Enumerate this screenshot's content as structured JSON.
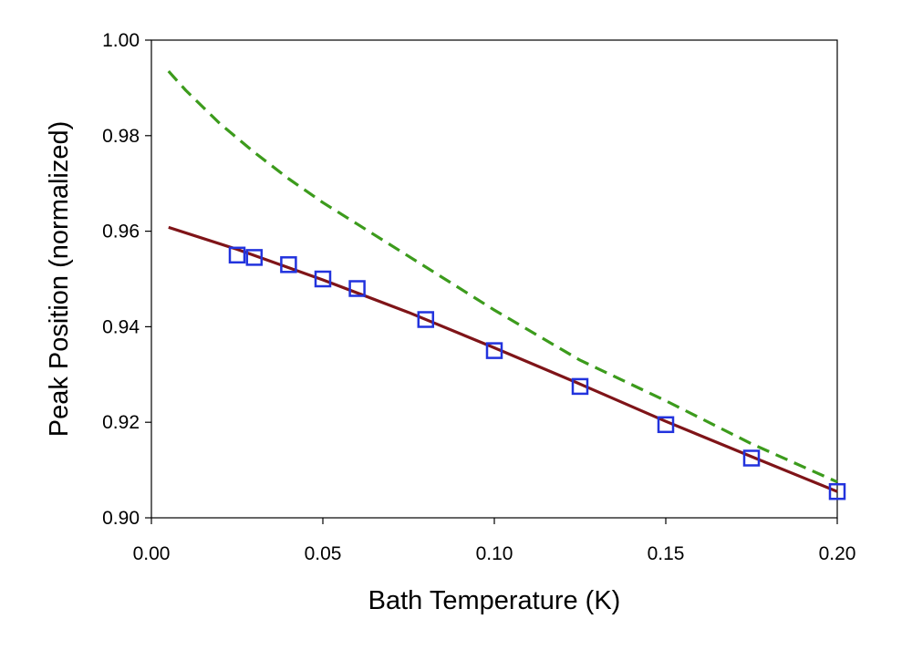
{
  "chart_data": {
    "type": "line",
    "title": "",
    "xlabel": "Bath Temperature  (K)",
    "ylabel": "Peak Position (normalized)",
    "xlim": [
      0.0,
      0.2
    ],
    "ylim": [
      0.9,
      1.0
    ],
    "grid": false,
    "x_ticks": [
      "0.00",
      "0.05",
      "0.10",
      "0.15",
      "0.20"
    ],
    "x_tick_values": [
      0.0,
      0.05,
      0.1,
      0.15,
      0.2
    ],
    "y_ticks": [
      "0.90",
      "0.92",
      "0.94",
      "0.96",
      "0.98",
      "1.00"
    ],
    "y_tick_values": [
      0.9,
      0.92,
      0.94,
      0.96,
      0.98,
      1.0
    ],
    "series": [
      {
        "kind": "line",
        "style": "dashed",
        "color": "#3c9b1c",
        "x": [
          0.005,
          0.01,
          0.02,
          0.03,
          0.04,
          0.05,
          0.06,
          0.08,
          0.1,
          0.125,
          0.15,
          0.175,
          0.2
        ],
        "y": [
          0.9935,
          0.9895,
          0.9825,
          0.9765,
          0.971,
          0.966,
          0.9615,
          0.9525,
          0.9435,
          0.933,
          0.9245,
          0.9155,
          0.9075
        ]
      },
      {
        "kind": "line",
        "style": "solid",
        "color": "#7f1418",
        "x": [
          0.005,
          0.025,
          0.05,
          0.075,
          0.1,
          0.125,
          0.15,
          0.175,
          0.2
        ],
        "y": [
          0.9608,
          0.9562,
          0.9498,
          0.943,
          0.9356,
          0.928,
          0.9202,
          0.9128,
          0.9055
        ]
      },
      {
        "kind": "scatter",
        "marker": "square",
        "color": "#2233dd",
        "x": [
          0.025,
          0.03,
          0.04,
          0.05,
          0.06,
          0.08,
          0.1,
          0.125,
          0.15,
          0.175,
          0.2
        ],
        "y": [
          0.955,
          0.9545,
          0.953,
          0.95,
          0.948,
          0.9415,
          0.935,
          0.9275,
          0.9195,
          0.9125,
          0.9055
        ]
      }
    ]
  }
}
